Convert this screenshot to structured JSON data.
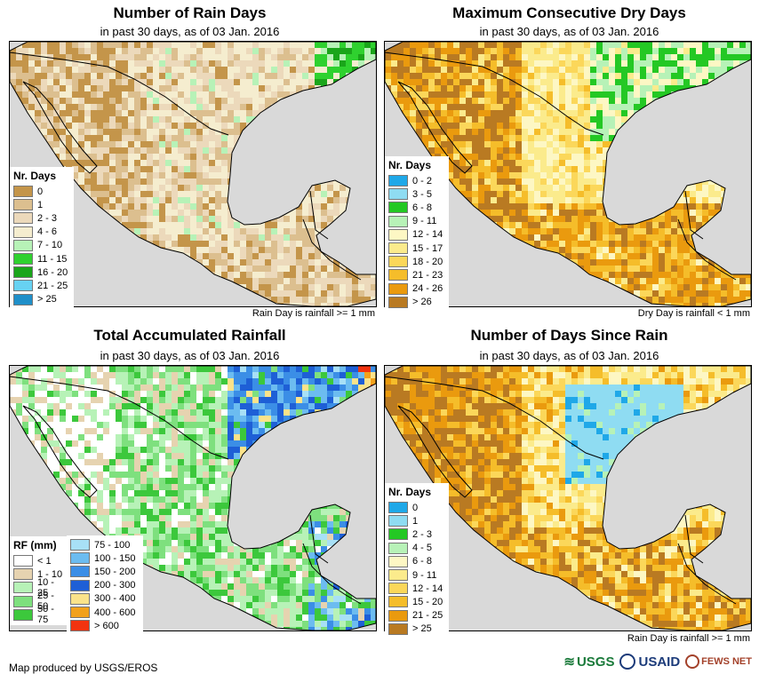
{
  "panels": [
    {
      "title": "Number of Rain Days",
      "subtitle": "in past 30 days, as of 03 Jan. 2016",
      "note": "Rain Day is rainfall >= 1 mm",
      "legend_title": "Nr. Days",
      "legend": [
        {
          "label": "0",
          "color": "#c4954a"
        },
        {
          "label": "1",
          "color": "#dcbf8f"
        },
        {
          "label": "2 - 3",
          "color": "#ecd9bb"
        },
        {
          "label": "4 - 6",
          "color": "#f5edcf"
        },
        {
          "label": "7 - 10",
          "color": "#b7f2b7"
        },
        {
          "label": "11 - 15",
          "color": "#2fd12f"
        },
        {
          "label": "16 - 20",
          "color": "#1aa51a"
        },
        {
          "label": "21 - 25",
          "color": "#67d2f2"
        },
        {
          "label": "> 25",
          "color": "#1f8fc9"
        }
      ]
    },
    {
      "title": "Maximum Consecutive Dry Days",
      "subtitle": "in past 30 days, as of 03 Jan. 2016",
      "note": "Dry Day is rainfall < 1 mm",
      "legend_title": "Nr. Days",
      "legend": [
        {
          "label": "0 - 2",
          "color": "#1fa8e8"
        },
        {
          "label": "3 - 5",
          "color": "#8fdcf2"
        },
        {
          "label": "6 - 8",
          "color": "#24c824"
        },
        {
          "label": "9 - 11",
          "color": "#b7f2b7"
        },
        {
          "label": "12 - 14",
          "color": "#fdf7c4"
        },
        {
          "label": "15 - 17",
          "color": "#fbeb8c"
        },
        {
          "label": "18 - 20",
          "color": "#fbd75a"
        },
        {
          "label": "21 - 23",
          "color": "#f5bd2a"
        },
        {
          "label": "24 - 26",
          "color": "#ea9a0e"
        },
        {
          "label": "> 26",
          "color": "#b97a22"
        }
      ]
    },
    {
      "title": "Total Accumulated Rainfall",
      "subtitle": "in past 30 days, as of 03 Jan. 2016",
      "note": "",
      "legend_title": "RF (mm)",
      "legend": [
        {
          "label": "< 1",
          "color": "#ffffff"
        },
        {
          "label": "1 - 10",
          "color": "#e6d3b0"
        },
        {
          "label": "10 - 25",
          "color": "#b7f2b7"
        },
        {
          "label": "25 - 50",
          "color": "#7ee07e"
        },
        {
          "label": "50 - 75",
          "color": "#3cc83c"
        }
      ],
      "legend2": [
        {
          "label": "75 - 100",
          "color": "#a8e0f6"
        },
        {
          "label": "100 - 150",
          "color": "#6cbcf0"
        },
        {
          "label": "150 - 200",
          "color": "#3b8ee6"
        },
        {
          "label": "200 - 300",
          "color": "#1e5fd6"
        },
        {
          "label": "300 - 400",
          "color": "#fbe38a"
        },
        {
          "label": "400 - 600",
          "color": "#f2a11c"
        },
        {
          "label": "> 600",
          "color": "#f2330f"
        }
      ]
    },
    {
      "title": "Number of Days Since Rain",
      "subtitle": "in past 30 days, as of 03 Jan. 2016",
      "note": "Rain Day is rainfall >= 1 mm",
      "legend_title": "Nr. Days",
      "legend": [
        {
          "label": "0",
          "color": "#1fa8e8"
        },
        {
          "label": "1",
          "color": "#8fdcf2"
        },
        {
          "label": "2 - 3",
          "color": "#24c824"
        },
        {
          "label": "4 - 5",
          "color": "#b7f2b7"
        },
        {
          "label": "6 - 8",
          "color": "#fdf7c4"
        },
        {
          "label": "9 - 11",
          "color": "#fbeb8c"
        },
        {
          "label": "12 - 14",
          "color": "#fbd75a"
        },
        {
          "label": "15 - 20",
          "color": "#f5bd2a"
        },
        {
          "label": "21 - 25",
          "color": "#ea9a0e"
        },
        {
          "label": "> 25",
          "color": "#b97a22"
        }
      ]
    }
  ],
  "footer": {
    "credit": "Map produced by USGS/EROS",
    "logos": [
      "USGS",
      "USAID",
      "FEWS NET"
    ]
  },
  "colors": {
    "ocean": "#d9d9d9",
    "border": "#000000"
  }
}
